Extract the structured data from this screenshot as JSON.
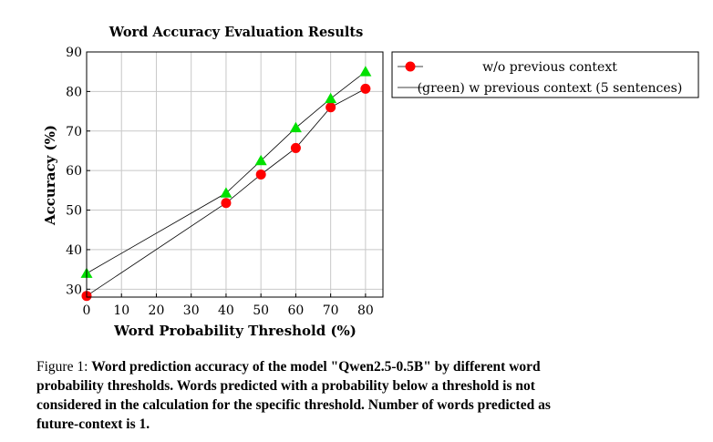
{
  "chart_data": {
    "type": "line",
    "title": "Word Accuracy Evaluation Results",
    "xlabel": "Word Probability Threshold (%)",
    "ylabel": "Accuracy (%)",
    "xlim": [
      0,
      85
    ],
    "ylim": [
      28,
      90
    ],
    "xticks": [
      0,
      10,
      20,
      30,
      40,
      50,
      60,
      70,
      80
    ],
    "yticks": [
      30,
      40,
      50,
      60,
      70,
      80,
      90
    ],
    "grid": true,
    "legend_position": "outside-right-top",
    "series": [
      {
        "name": "w/o previous context",
        "color": "#000000",
        "marker": "circle",
        "marker_color": "#ff0000",
        "x": [
          0,
          40,
          50,
          60,
          70,
          80
        ],
        "y": [
          28.3,
          51.8,
          59.0,
          65.7,
          76.0,
          80.7
        ]
      },
      {
        "name": "(green) w previous context (5 sentences)",
        "color": "#000000",
        "marker": "triangle",
        "marker_color": "#00e000",
        "x": [
          0,
          40,
          50,
          60,
          70,
          80
        ],
        "y": [
          34.0,
          54.3,
          62.5,
          70.8,
          78.2,
          85.0
        ]
      }
    ]
  },
  "caption": {
    "label": "Figure 1:",
    "text": "Word prediction accuracy of the model \"Qwen2.5-0.5B\" by different word probability thresholds. Words predicted with a probability below a threshold is not considered in the calculation for the specific threshold. Number of words predicted as future-context is 1."
  }
}
